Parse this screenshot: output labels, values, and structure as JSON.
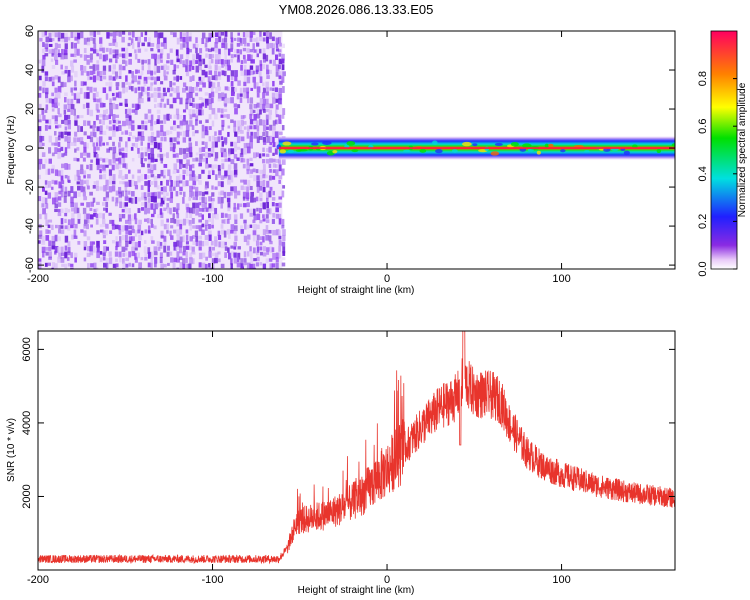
{
  "title": "YM08.2026.086.13.33.E05",
  "colors": {
    "snr_line": "#e8342c",
    "noise_violet": "#7a2ee6",
    "background": "#ffffff"
  },
  "chart_data": [
    {
      "type": "heatmap",
      "xlabel": "Height of straight line (km)",
      "ylabel": "Frequency (Hz)",
      "xlim": [
        -200,
        165
      ],
      "ylim": [
        -62,
        60
      ],
      "xticks": [
        -200,
        -100,
        0,
        100
      ],
      "yticks": [
        60,
        40,
        20,
        0,
        -20,
        -40,
        -60
      ],
      "noise_region_x": [
        -200,
        -60
      ],
      "signal_band": {
        "x": [
          -62,
          165
        ],
        "frequency_center": 0,
        "half_width_hz": 4
      },
      "colorbar": {
        "label": "Normalized spectral amplitude",
        "range": [
          0,
          1
        ],
        "ticks": [
          0.0,
          0.2,
          0.4,
          0.6,
          0.8
        ],
        "tick_labels": [
          "0.0",
          "0.2",
          "0.4",
          "0.6",
          "0.8"
        ],
        "colormap": "rainbow"
      }
    },
    {
      "type": "line",
      "xlabel": "Height of straight line (km)",
      "ylabel": "SNR (10 * v/v)",
      "xlim": [
        -200,
        165
      ],
      "ylim": [
        0,
        6500
      ],
      "xticks": [
        -200,
        -100,
        0,
        100
      ],
      "yticks": [
        2000,
        4000,
        6000
      ],
      "series": [
        {
          "x": [
            -200,
            -150,
            -100,
            -62,
            -57,
            -52,
            -45,
            -35,
            -25,
            -15,
            -5,
            0,
            10,
            20,
            30,
            40,
            44,
            50,
            60,
            65,
            70,
            80,
            90,
            100,
            120,
            140,
            165
          ],
          "y": [
            300,
            300,
            300,
            300,
            600,
            1300,
            1400,
            1500,
            1700,
            2000,
            2500,
            2750,
            3300,
            3900,
            4400,
            4700,
            5200,
            4800,
            4750,
            4600,
            4000,
            3200,
            2800,
            2600,
            2300,
            2100,
            1950
          ]
        }
      ]
    }
  ]
}
